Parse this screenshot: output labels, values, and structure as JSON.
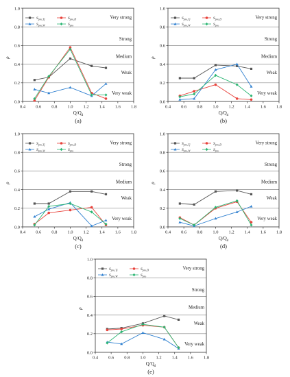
{
  "figure": {
    "legend_entries": [
      {
        "base": "S",
        "sub": "pro,Tj",
        "color": "#555555",
        "marker": "square"
      },
      {
        "base": "S",
        "sub": "pro,D",
        "color": "#e8423b",
        "marker": "circle"
      },
      {
        "base": "S",
        "sub": "pro,W",
        "color": "#2f80d0",
        "marker": "triangle"
      },
      {
        "base": "S",
        "sub": "pro",
        "color": "#2bb673",
        "marker": "diamond"
      }
    ],
    "level_labels": [
      "Very strong",
      "Strong",
      "Medium",
      "Weak",
      "Very weak"
    ]
  },
  "chart_data": [
    {
      "panel": "(a)",
      "type": "line",
      "xlabel": "Q/Q",
      "xlabel_sub": "d",
      "ylabel": "ρ",
      "xlim": [
        0.4,
        1.8
      ],
      "ylim": [
        0.0,
        1.0
      ],
      "xticks": [
        "0.4",
        "0.6",
        "0.8",
        "1.0",
        "1.2",
        "1.4",
        "1.6",
        "1.8"
      ],
      "yticks": [
        "0.0",
        "0.2",
        "0.4",
        "0.6",
        "0.8",
        "1.0"
      ],
      "levels": [
        0.2,
        0.4,
        0.6,
        0.8
      ],
      "legend": "top-left",
      "series": [
        {
          "name": "S_pro,Tj",
          "x": [
            0.55,
            0.73,
            1.0,
            1.27,
            1.45
          ],
          "y": [
            0.23,
            0.26,
            0.46,
            0.38,
            0.36
          ]
        },
        {
          "name": "S_pro,D",
          "x": [
            0.55,
            0.73,
            1.0,
            1.27,
            1.45
          ],
          "y": [
            0.01,
            0.26,
            0.58,
            0.09,
            0.03
          ]
        },
        {
          "name": "S_pro,W",
          "x": [
            0.55,
            0.73,
            1.0,
            1.27,
            1.45
          ],
          "y": [
            0.13,
            0.09,
            0.15,
            0.06,
            0.19
          ]
        },
        {
          "name": "S_pro",
          "x": [
            0.55,
            0.73,
            1.0,
            1.27,
            1.45
          ],
          "y": [
            0.03,
            0.27,
            0.56,
            0.07,
            0.07
          ]
        }
      ]
    },
    {
      "panel": "(b)",
      "type": "line",
      "xlabel": "Q/Q",
      "xlabel_sub": "d",
      "ylabel": "ρ",
      "xlim": [
        0.4,
        1.8
      ],
      "ylim": [
        0.0,
        1.0
      ],
      "xticks": [
        "0.4",
        "0.6",
        "0.8",
        "1.0",
        "1.2",
        "1.4",
        "1.6",
        "1.8"
      ],
      "yticks": [
        "0.0",
        "0.2",
        "0.4",
        "0.6",
        "0.8",
        "1.0"
      ],
      "levels": [
        0.2,
        0.4,
        0.6,
        0.8
      ],
      "legend": "top-left",
      "series": [
        {
          "name": "S_pro,Tj",
          "x": [
            0.55,
            0.73,
            1.0,
            1.27,
            1.45
          ],
          "y": [
            0.25,
            0.25,
            0.39,
            0.38,
            0.35
          ]
        },
        {
          "name": "S_pro,D",
          "x": [
            0.55,
            0.73,
            1.0,
            1.27,
            1.45
          ],
          "y": [
            0.06,
            0.11,
            0.18,
            0.03,
            0.02
          ]
        },
        {
          "name": "S_pro,W",
          "x": [
            0.55,
            0.73,
            1.0,
            1.27,
            1.45
          ],
          "y": [
            0.02,
            0.03,
            0.34,
            0.4,
            0.16
          ]
        },
        {
          "name": "S_pro",
          "x": [
            0.55,
            0.73,
            1.0,
            1.27,
            1.45
          ],
          "y": [
            0.05,
            0.08,
            0.28,
            0.18,
            0.06
          ]
        }
      ]
    },
    {
      "panel": "(c)",
      "type": "line",
      "xlabel": "Q/Q",
      "xlabel_sub": "d",
      "ylabel": "ρ",
      "xlim": [
        0.4,
        1.8
      ],
      "ylim": [
        0.0,
        1.0
      ],
      "xticks": [
        "0.4",
        "0.6",
        "0.8",
        "1.0",
        "1.2",
        "1.4",
        "1.6",
        "1.8"
      ],
      "yticks": [
        "0.0",
        "0.2",
        "0.4",
        "0.6",
        "0.8",
        "1.0"
      ],
      "levels": [
        0.2,
        0.4,
        0.6,
        0.8
      ],
      "legend": "top-left",
      "series": [
        {
          "name": "S_pro,Tj",
          "x": [
            0.55,
            0.73,
            1.0,
            1.27,
            1.45
          ],
          "y": [
            0.25,
            0.25,
            0.38,
            0.38,
            0.35
          ]
        },
        {
          "name": "S_pro,D",
          "x": [
            0.55,
            0.73,
            1.0,
            1.27,
            1.45
          ],
          "y": [
            0.03,
            0.15,
            0.18,
            0.21,
            0.02
          ]
        },
        {
          "name": "S_pro,W",
          "x": [
            0.55,
            0.73,
            1.0,
            1.27,
            1.45
          ],
          "y": [
            0.11,
            0.19,
            0.26,
            0.01,
            0.07
          ]
        },
        {
          "name": "S_pro",
          "x": [
            0.55,
            0.73,
            1.0,
            1.27,
            1.45
          ],
          "y": [
            0.02,
            0.22,
            0.25,
            0.16,
            0.03
          ]
        }
      ]
    },
    {
      "panel": "(d)",
      "type": "line",
      "xlabel": "Q/Q",
      "xlabel_sub": "d",
      "ylabel": "ρ",
      "xlim": [
        0.4,
        1.8
      ],
      "ylim": [
        0.0,
        1.0
      ],
      "xticks": [
        "0.4",
        "0.6",
        "0.8",
        "1.0",
        "1.2",
        "1.4",
        "1.6",
        "1.8"
      ],
      "yticks": [
        "0.0",
        "0.2",
        "0.4",
        "0.6",
        "0.8",
        "1.0"
      ],
      "levels": [
        0.2,
        0.4,
        0.6,
        0.8
      ],
      "legend": "top-left",
      "series": [
        {
          "name": "S_pro,Tj",
          "x": [
            0.55,
            0.73,
            1.0,
            1.27,
            1.45
          ],
          "y": [
            0.25,
            0.24,
            0.38,
            0.39,
            0.35
          ]
        },
        {
          "name": "S_pro,D",
          "x": [
            0.55,
            0.73,
            1.0,
            1.27,
            1.45
          ],
          "y": [
            0.1,
            0.02,
            0.2,
            0.27,
            0.05
          ]
        },
        {
          "name": "S_pro,W",
          "x": [
            0.55,
            0.73,
            1.0,
            1.27,
            1.45
          ],
          "y": [
            0.05,
            0.01,
            0.09,
            0.16,
            0.22
          ]
        },
        {
          "name": "S_pro",
          "x": [
            0.55,
            0.73,
            1.0,
            1.27,
            1.45
          ],
          "y": [
            0.09,
            0.02,
            0.21,
            0.28,
            0.02
          ]
        }
      ]
    },
    {
      "panel": "(e)",
      "type": "line",
      "xlabel": "Q/Q",
      "xlabel_sub": "d",
      "ylabel": "ρ",
      "xlim": [
        0.4,
        1.8
      ],
      "ylim": [
        0.0,
        1.0
      ],
      "xticks": [
        "0.4",
        "0.6",
        "0.8",
        "1.0",
        "1.2",
        "1.4",
        "1.6",
        "1.8"
      ],
      "yticks": [
        "0.0",
        "0.2",
        "0.4",
        "0.6",
        "0.8",
        "1.0"
      ],
      "levels": [
        0.2,
        0.4,
        0.6,
        0.8
      ],
      "legend": "top-left",
      "series": [
        {
          "name": "S_pro,Tj",
          "x": [
            0.55,
            0.73,
            1.0,
            1.27,
            1.45
          ],
          "y": [
            0.25,
            0.26,
            0.31,
            0.39,
            0.35
          ]
        },
        {
          "name": "S_pro,D",
          "x": [
            0.55,
            0.73,
            1.0,
            1.27,
            1.45
          ],
          "y": [
            0.24,
            0.25,
            0.29,
            0.27,
            0.05
          ]
        },
        {
          "name": "S_pro,W",
          "x": [
            0.55,
            0.73,
            1.0,
            1.27,
            1.45
          ],
          "y": [
            0.11,
            0.09,
            0.21,
            0.14,
            0.04
          ]
        },
        {
          "name": "S_pro",
          "x": [
            0.55,
            0.73,
            1.0,
            1.27,
            1.45
          ],
          "y": [
            0.1,
            0.22,
            0.3,
            0.27,
            0.05
          ]
        }
      ]
    }
  ]
}
